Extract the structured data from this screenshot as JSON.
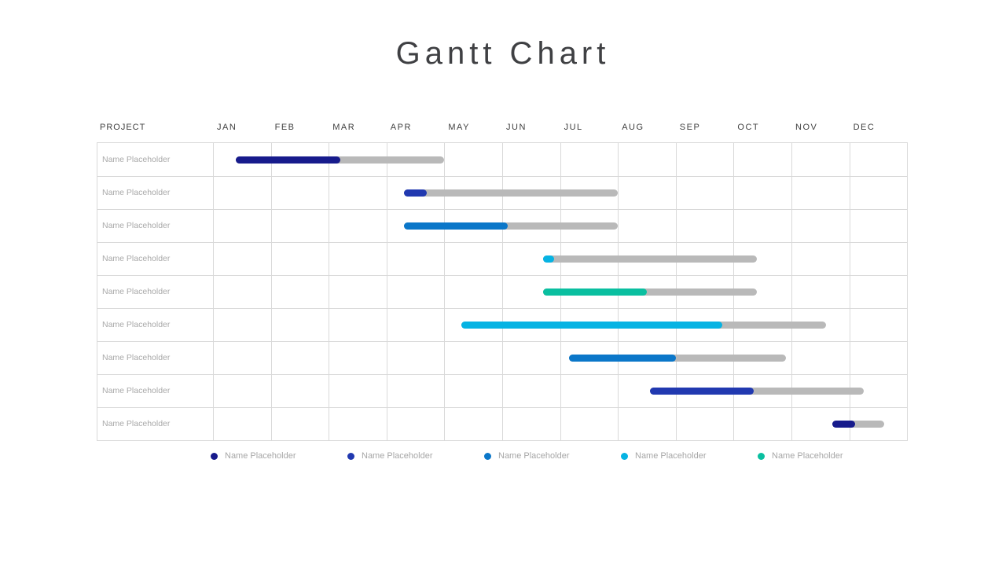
{
  "title": "Gantt Chart",
  "colors": {
    "series1": "#171b8c",
    "series2": "#2139b0",
    "series3": "#0b77c9",
    "series4": "#06b3e3",
    "series5": "#0abfa0",
    "track": "#b9b9b9",
    "grid_line": "#d9d9d9",
    "header_text": "#404040",
    "row_label_text": "#a9a9a9"
  },
  "table": {
    "project_header": "PROJECT",
    "months": [
      "JAN",
      "FEB",
      "MAR",
      "APR",
      "MAY",
      "JUN",
      "JUL",
      "AUG",
      "SEP",
      "OCT",
      "NOV",
      "DEC"
    ]
  },
  "chart_data": {
    "type": "gantt",
    "x_unit": "months",
    "x_range": [
      0,
      12
    ],
    "x_labels": [
      "JAN",
      "FEB",
      "MAR",
      "APR",
      "MAY",
      "JUN",
      "JUL",
      "AUG",
      "SEP",
      "OCT",
      "NOV",
      "DEC"
    ],
    "grid": true,
    "rows": [
      {
        "label": "Name Placeholder",
        "series": "series1",
        "start": 0.4,
        "progress_end": 2.2,
        "end": 4.0
      },
      {
        "label": "Name Placeholder",
        "series": "series2",
        "start": 3.3,
        "progress_end": 3.7,
        "end": 7.0
      },
      {
        "label": "Name Placeholder",
        "series": "series3",
        "start": 3.3,
        "progress_end": 5.1,
        "end": 7.0
      },
      {
        "label": "Name Placeholder",
        "series": "series4",
        "start": 5.7,
        "progress_end": 5.9,
        "end": 9.4
      },
      {
        "label": "Name Placeholder",
        "series": "series5",
        "start": 5.7,
        "progress_end": 7.5,
        "end": 9.4
      },
      {
        "label": "Name Placeholder",
        "series": "series4",
        "start": 4.3,
        "progress_end": 8.8,
        "end": 10.6
      },
      {
        "label": "Name Placeholder",
        "series": "series3",
        "start": 6.15,
        "progress_end": 8.0,
        "end": 9.9
      },
      {
        "label": "Name Placeholder",
        "series": "series2",
        "start": 7.55,
        "progress_end": 9.35,
        "end": 11.25
      },
      {
        "label": "Name Placeholder",
        "series": "series1",
        "start": 10.7,
        "progress_end": 11.1,
        "end": 11.6
      }
    ]
  },
  "legend": {
    "items": [
      {
        "label": "Name Placeholder",
        "series": "series1"
      },
      {
        "label": "Name Placeholder",
        "series": "series2"
      },
      {
        "label": "Name Placeholder",
        "series": "series3"
      },
      {
        "label": "Name Placeholder",
        "series": "series4"
      },
      {
        "label": "Name Placeholder",
        "series": "series5"
      }
    ]
  }
}
